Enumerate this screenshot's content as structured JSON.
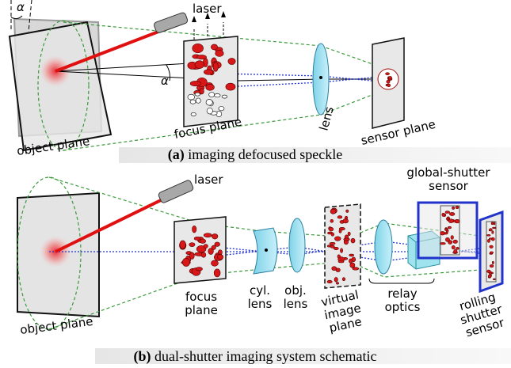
{
  "panel_a": {
    "alpha_top": "α",
    "alpha_beam": "α",
    "laser": "laser",
    "focus_plane": "focus plane",
    "lens": "lens",
    "sensor_plane": "sensor plane",
    "object_plane": "object plane",
    "caption": {
      "tag": "(a)",
      "text": " imaging defocused speckle"
    }
  },
  "panel_b": {
    "laser": "laser",
    "global_shutter_sensor": [
      "global-shutter",
      "sensor"
    ],
    "object_plane": "object plane",
    "focus_plane": [
      "focus",
      "plane"
    ],
    "cyl_lens": [
      "cyl.",
      "lens"
    ],
    "obj_lens": [
      "obj.",
      "lens"
    ],
    "virtual_image_plane": [
      "virtual",
      "image",
      "plane"
    ],
    "relay_optics": [
      "relay",
      "optics"
    ],
    "rolling_shutter_sensor": [
      "rolling",
      "shutter",
      "sensor"
    ],
    "caption": {
      "tag": "(b)",
      "text": " dual-shutter imaging system schematic"
    }
  }
}
